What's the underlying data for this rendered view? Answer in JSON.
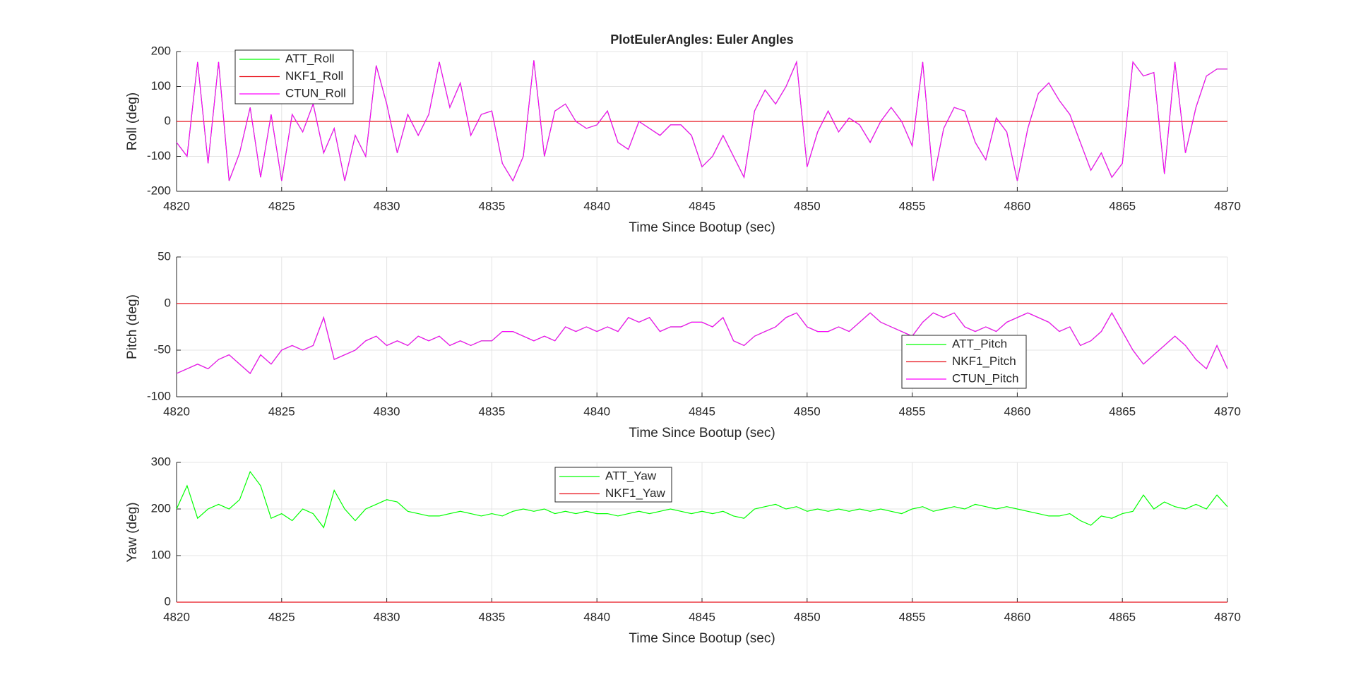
{
  "chart_data": [
    {
      "type": "line",
      "title": "PlotEulerAngles: Euler Angles",
      "xlabel": "Time Since Bootup (sec)",
      "ylabel": "Roll (deg)",
      "x": [
        4820,
        4820.5,
        4821,
        4821.5,
        4822,
        4822.5,
        4823,
        4823.5,
        4824,
        4824.5,
        4825,
        4825.5,
        4826,
        4826.5,
        4827,
        4827.5,
        4828,
        4828.5,
        4829,
        4829.5,
        4830,
        4830.5,
        4831,
        4831.5,
        4832,
        4832.5,
        4833,
        4833.5,
        4834,
        4834.5,
        4835,
        4835.5,
        4836,
        4836.5,
        4837,
        4837.5,
        4838,
        4838.5,
        4839,
        4839.5,
        4840,
        4840.5,
        4841,
        4841.5,
        4842,
        4842.5,
        4843,
        4843.5,
        4844,
        4844.5,
        4845,
        4845.5,
        4846,
        4846.5,
        4847,
        4847.5,
        4848,
        4848.5,
        4849,
        4849.5,
        4850,
        4850.5,
        4851,
        4851.5,
        4852,
        4852.5,
        4853,
        4853.5,
        4854,
        4854.5,
        4855,
        4855.5,
        4856,
        4856.5,
        4857,
        4857.5,
        4858,
        4858.5,
        4859,
        4859.5,
        4860,
        4860.5,
        4861,
        4861.5,
        4862,
        4862.5,
        4863,
        4863.5,
        4864,
        4864.5,
        4865,
        4865.5,
        4866,
        4866.5,
        4867,
        4867.5,
        4868,
        4868.5,
        4869,
        4869.5,
        4870
      ],
      "series": [
        {
          "name": "ATT_Roll",
          "color": "#00ff00",
          "values": [
            -60,
            -100,
            170,
            -120,
            170,
            -170,
            -90,
            40,
            -160,
            20,
            -170,
            20,
            -30,
            50,
            -90,
            -20,
            -170,
            -40,
            -100,
            160,
            50,
            -90,
            20,
            -40,
            20,
            170,
            40,
            110,
            -40,
            20,
            30,
            -120,
            -170,
            -100,
            175,
            -100,
            30,
            50,
            0,
            -20,
            -10,
            30,
            -60,
            -80,
            0,
            -20,
            -40,
            -10,
            -10,
            -40,
            -130,
            -100,
            -40,
            -100,
            -160,
            30,
            90,
            50,
            100,
            170,
            -130,
            -30,
            30,
            -30,
            10,
            -10,
            -60,
            0,
            40,
            0,
            -70,
            170,
            -170,
            -20,
            40,
            30,
            -60,
            -110,
            10,
            -30,
            -170,
            -20,
            80,
            110,
            60,
            20,
            -60,
            -140,
            -90,
            -160,
            -120,
            170,
            130,
            140,
            -150,
            170,
            -90,
            40,
            130,
            150,
            150
          ]
        },
        {
          "name": "NKF1_Roll",
          "color": "#e8101a",
          "x": [
            4820,
            4870
          ],
          "values": [
            0,
            0
          ]
        },
        {
          "name": "CTUN_Roll",
          "color": "#ff00ff",
          "values": [
            -60,
            -100,
            170,
            -120,
            170,
            -170,
            -90,
            40,
            -160,
            20,
            -170,
            20,
            -30,
            50,
            -90,
            -20,
            -170,
            -40,
            -100,
            160,
            50,
            -90,
            20,
            -40,
            20,
            170,
            40,
            110,
            -40,
            20,
            30,
            -120,
            -170,
            -100,
            175,
            -100,
            30,
            50,
            0,
            -20,
            -10,
            30,
            -60,
            -80,
            0,
            -20,
            -40,
            -10,
            -10,
            -40,
            -130,
            -100,
            -40,
            -100,
            -160,
            30,
            90,
            50,
            100,
            170,
            -130,
            -30,
            30,
            -30,
            10,
            -10,
            -60,
            0,
            40,
            0,
            -70,
            170,
            -170,
            -20,
            40,
            30,
            -60,
            -110,
            10,
            -30,
            -170,
            -20,
            80,
            110,
            60,
            20,
            -60,
            -140,
            -90,
            -160,
            -120,
            170,
            130,
            140,
            -150,
            170,
            -90,
            40,
            130,
            150,
            150
          ]
        }
      ],
      "xlim": [
        4820,
        4870
      ],
      "ylim": [
        -200,
        200
      ],
      "xticks": [
        4820,
        4825,
        4830,
        4835,
        4840,
        4845,
        4850,
        4855,
        4860,
        4865,
        4870
      ],
      "yticks": [
        -200,
        -100,
        0,
        100,
        200
      ],
      "grid": true
    },
    {
      "type": "line",
      "xlabel": "Time Since Bootup (sec)",
      "ylabel": "Pitch (deg)",
      "x": [
        4820,
        4820.5,
        4821,
        4821.5,
        4822,
        4822.5,
        4823,
        4823.5,
        4824,
        4824.5,
        4825,
        4825.5,
        4826,
        4826.5,
        4827,
        4827.5,
        4828,
        4828.5,
        4829,
        4829.5,
        4830,
        4830.5,
        4831,
        4831.5,
        4832,
        4832.5,
        4833,
        4833.5,
        4834,
        4834.5,
        4835,
        4835.5,
        4836,
        4836.5,
        4837,
        4837.5,
        4838,
        4838.5,
        4839,
        4839.5,
        4840,
        4840.5,
        4841,
        4841.5,
        4842,
        4842.5,
        4843,
        4843.5,
        4844,
        4844.5,
        4845,
        4845.5,
        4846,
        4846.5,
        4847,
        4847.5,
        4848,
        4848.5,
        4849,
        4849.5,
        4850,
        4850.5,
        4851,
        4851.5,
        4852,
        4852.5,
        4853,
        4853.5,
        4854,
        4854.5,
        4855,
        4855.5,
        4856,
        4856.5,
        4857,
        4857.5,
        4858,
        4858.5,
        4859,
        4859.5,
        4860,
        4860.5,
        4861,
        4861.5,
        4862,
        4862.5,
        4863,
        4863.5,
        4864,
        4864.5,
        4865,
        4865.5,
        4866,
        4866.5,
        4867,
        4867.5,
        4868,
        4868.5,
        4869,
        4869.5,
        4870
      ],
      "series": [
        {
          "name": "ATT_Pitch",
          "color": "#00ff00",
          "values": [
            -75,
            -70,
            -65,
            -70,
            -60,
            -55,
            -65,
            -75,
            -55,
            -65,
            -50,
            -45,
            -50,
            -45,
            -15,
            -60,
            -55,
            -50,
            -40,
            -35,
            -45,
            -40,
            -45,
            -35,
            -40,
            -35,
            -45,
            -40,
            -45,
            -40,
            -40,
            -30,
            -30,
            -35,
            -40,
            -35,
            -40,
            -25,
            -30,
            -25,
            -30,
            -25,
            -30,
            -15,
            -20,
            -15,
            -30,
            -25,
            -25,
            -20,
            -20,
            -25,
            -15,
            -40,
            -45,
            -35,
            -30,
            -25,
            -15,
            -10,
            -25,
            -30,
            -30,
            -25,
            -30,
            -20,
            -10,
            -20,
            -25,
            -30,
            -35,
            -20,
            -10,
            -15,
            -10,
            -25,
            -30,
            -25,
            -30,
            -20,
            -15,
            -10,
            -15,
            -20,
            -30,
            -25,
            -45,
            -40,
            -30,
            -10,
            -30,
            -50,
            -65,
            -55,
            -45,
            -35,
            -45,
            -60,
            -70,
            -45,
            -70
          ]
        },
        {
          "name": "NKF1_Pitch",
          "color": "#e8101a",
          "x": [
            4820,
            4870
          ],
          "values": [
            0,
            0
          ]
        },
        {
          "name": "CTUN_Pitch",
          "color": "#ff00ff",
          "values": [
            -75,
            -70,
            -65,
            -70,
            -60,
            -55,
            -65,
            -75,
            -55,
            -65,
            -50,
            -45,
            -50,
            -45,
            -15,
            -60,
            -55,
            -50,
            -40,
            -35,
            -45,
            -40,
            -45,
            -35,
            -40,
            -35,
            -45,
            -40,
            -45,
            -40,
            -40,
            -30,
            -30,
            -35,
            -40,
            -35,
            -40,
            -25,
            -30,
            -25,
            -30,
            -25,
            -30,
            -15,
            -20,
            -15,
            -30,
            -25,
            -25,
            -20,
            -20,
            -25,
            -15,
            -40,
            -45,
            -35,
            -30,
            -25,
            -15,
            -10,
            -25,
            -30,
            -30,
            -25,
            -30,
            -20,
            -10,
            -20,
            -25,
            -30,
            -35,
            -20,
            -10,
            -15,
            -10,
            -25,
            -30,
            -25,
            -30,
            -20,
            -15,
            -10,
            -15,
            -20,
            -30,
            -25,
            -45,
            -40,
            -30,
            -10,
            -30,
            -50,
            -65,
            -55,
            -45,
            -35,
            -45,
            -60,
            -70,
            -45,
            -70
          ]
        }
      ],
      "xlim": [
        4820,
        4870
      ],
      "ylim": [
        -100,
        50
      ],
      "xticks": [
        4820,
        4825,
        4830,
        4835,
        4840,
        4845,
        4850,
        4855,
        4860,
        4865,
        4870
      ],
      "yticks": [
        -100,
        -50,
        0,
        50
      ],
      "grid": true
    },
    {
      "type": "line",
      "xlabel": "Time Since Bootup (sec)",
      "ylabel": "Yaw (deg)",
      "x": [
        4820,
        4820.5,
        4821,
        4821.5,
        4822,
        4822.5,
        4823,
        4823.5,
        4824,
        4824.5,
        4825,
        4825.5,
        4826,
        4826.5,
        4827,
        4827.5,
        4828,
        4828.5,
        4829,
        4829.5,
        4830,
        4830.5,
        4831,
        4831.5,
        4832,
        4832.5,
        4833,
        4833.5,
        4834,
        4834.5,
        4835,
        4835.5,
        4836,
        4836.5,
        4837,
        4837.5,
        4838,
        4838.5,
        4839,
        4839.5,
        4840,
        4840.5,
        4841,
        4841.5,
        4842,
        4842.5,
        4843,
        4843.5,
        4844,
        4844.5,
        4845,
        4845.5,
        4846,
        4846.5,
        4847,
        4847.5,
        4848,
        4848.5,
        4849,
        4849.5,
        4850,
        4850.5,
        4851,
        4851.5,
        4852,
        4852.5,
        4853,
        4853.5,
        4854,
        4854.5,
        4855,
        4855.5,
        4856,
        4856.5,
        4857,
        4857.5,
        4858,
        4858.5,
        4859,
        4859.5,
        4860,
        4860.5,
        4861,
        4861.5,
        4862,
        4862.5,
        4863,
        4863.5,
        4864,
        4864.5,
        4865,
        4865.5,
        4866,
        4866.5,
        4867,
        4867.5,
        4868,
        4868.5,
        4869,
        4869.5,
        4870
      ],
      "series": [
        {
          "name": "ATT_Yaw",
          "color": "#00ff00",
          "values": [
            200,
            250,
            180,
            200,
            210,
            200,
            220,
            280,
            250,
            180,
            190,
            175,
            200,
            190,
            160,
            240,
            200,
            175,
            200,
            210,
            220,
            215,
            195,
            190,
            185,
            185,
            190,
            195,
            190,
            185,
            190,
            185,
            195,
            200,
            195,
            200,
            190,
            195,
            190,
            195,
            190,
            190,
            185,
            190,
            195,
            190,
            195,
            200,
            195,
            190,
            195,
            190,
            195,
            185,
            180,
            200,
            205,
            210,
            200,
            205,
            195,
            200,
            195,
            200,
            195,
            200,
            195,
            200,
            195,
            190,
            200,
            205,
            195,
            200,
            205,
            200,
            210,
            205,
            200,
            205,
            200,
            195,
            190,
            185,
            185,
            190,
            175,
            165,
            185,
            180,
            190,
            195,
            230,
            200,
            215,
            205,
            200,
            210,
            200,
            230,
            205
          ]
        },
        {
          "name": "NKF1_Yaw",
          "color": "#e8101a",
          "x": [
            4820,
            4870
          ],
          "values": [
            0,
            0
          ]
        }
      ],
      "xlim": [
        4820,
        4870
      ],
      "ylim": [
        0,
        300
      ],
      "xticks": [
        4820,
        4825,
        4830,
        4835,
        4840,
        4845,
        4850,
        4855,
        4860,
        4865,
        4870
      ],
      "yticks": [
        0,
        100,
        200,
        300
      ],
      "grid": true
    }
  ]
}
